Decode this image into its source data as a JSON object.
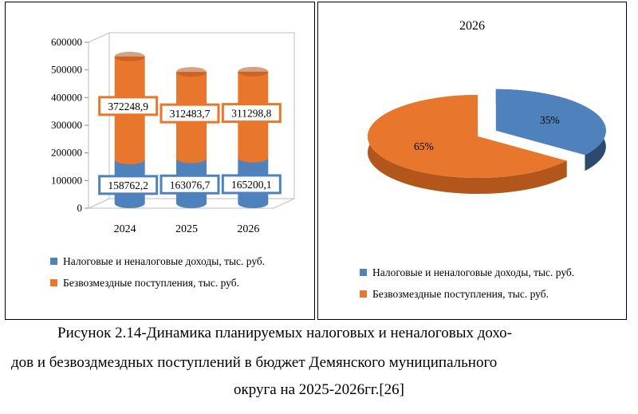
{
  "colors": {
    "blue": "#4F81BD",
    "orange": "#E8762D",
    "blue_dark": "#2C4A6E",
    "orange_dark": "#B3561C"
  },
  "chart_data": [
    {
      "type": "bar",
      "stacked": true,
      "style": "3d-cylinder",
      "categories": [
        "2024",
        "2025",
        "2026"
      ],
      "series": [
        {
          "name": "Налоговые и неналоговые доходы, тыс. руб.",
          "values": [
            158762.2,
            163076.7,
            165200.1
          ],
          "labels": [
            "158762,2",
            "163076,7",
            "165200,1"
          ]
        },
        {
          "name": "Безвозмездные поступления, тыс. руб.",
          "values": [
            372248.9,
            312483.7,
            311298.8
          ],
          "labels": [
            "372248,9",
            "312483,7",
            "311298,8"
          ]
        }
      ],
      "ylim": [
        0,
        600000
      ],
      "yticks": [
        "0",
        "100000",
        "200000",
        "300000",
        "400000",
        "500000",
        "600000"
      ],
      "grid": false,
      "legend": "bottom"
    },
    {
      "type": "pie",
      "style": "3d-exploded",
      "title": "2026",
      "slices": [
        {
          "name": "Налоговые и неналоговые доходы, тыс. руб.",
          "value": 35,
          "label": "35%"
        },
        {
          "name": "Безвозмездные поступления, тыс. руб.",
          "value": 65,
          "label": "65%"
        }
      ],
      "legend": "bottom"
    }
  ],
  "legend": {
    "item1": "Налоговые и неналоговые доходы, тыс. руб.",
    "item2": "Безвозмездные поступления, тыс. руб."
  },
  "caption": {
    "line1": "Рисунок 2.14-Динамика планируемых налоговых и неналоговых дохо-",
    "line2": "дов и безвоздмездных поступлений в бюджет Демянского муниципального",
    "line3": "округа на 2025-2026гг.[26]"
  }
}
